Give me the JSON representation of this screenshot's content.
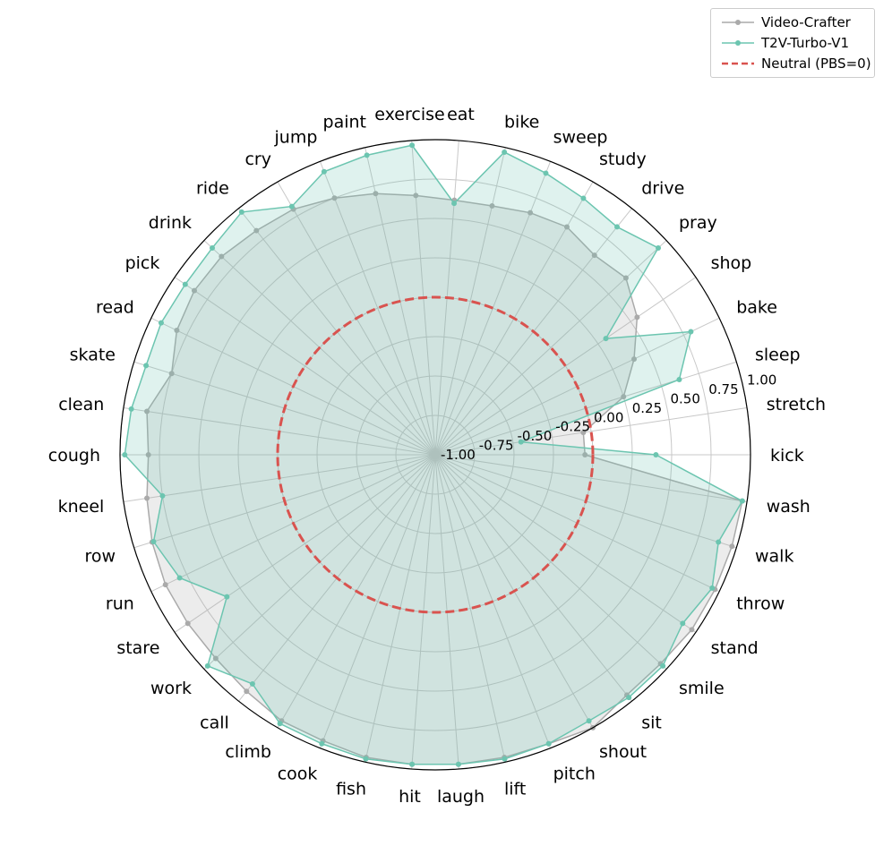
{
  "chart_data": {
    "type": "radar",
    "categories": [
      "kick",
      "stretch",
      "sleep",
      "bake",
      "shop",
      "pray",
      "drive",
      "study",
      "sweep",
      "bike",
      "eat",
      "exercise",
      "paint",
      "jump",
      "cry",
      "ride",
      "drink",
      "pick",
      "read",
      "skate",
      "clean",
      "cough",
      "kneel",
      "row",
      "run",
      "stare",
      "work",
      "call",
      "climb",
      "cook",
      "fish",
      "hit",
      "laugh",
      "lift",
      "pitch",
      "shout",
      "sit",
      "smile",
      "stand",
      "throw",
      "walk",
      "wash"
    ],
    "rlim": [
      -1.0,
      1.0
    ],
    "radial_ticks": [
      -1.0,
      -0.75,
      -0.5,
      -0.25,
      0.0,
      0.25,
      0.5,
      0.75,
      1.0
    ],
    "radial_tick_labels": [
      "-1.00",
      "-0.75",
      "-0.50",
      "-0.25",
      "0.00",
      "0.25",
      "0.50",
      "0.75",
      "1.00"
    ],
    "grid": true,
    "legend_position": "top-right",
    "series": [
      {
        "name": "Video-Crafter",
        "color": "#aaaaaa",
        "values": [
          -0.05,
          -0.05,
          0.25,
          0.4,
          0.55,
          0.65,
          0.62,
          0.67,
          0.65,
          0.62,
          0.62,
          0.65,
          0.7,
          0.75,
          0.8,
          0.82,
          0.85,
          0.85,
          0.82,
          0.75,
          0.85,
          0.82,
          0.85,
          0.88,
          0.9,
          0.9,
          0.9,
          0.92,
          0.95,
          0.95,
          0.97,
          0.97,
          0.97,
          0.97,
          0.97,
          1.0,
          0.95,
          0.95,
          0.97,
          0.97,
          0.97,
          0.97
        ]
      },
      {
        "name": "T2V-Turbo-V1",
        "color": "#6cc5b0",
        "values": [
          0.4,
          -0.45,
          0.62,
          0.8,
          0.31,
          0.93,
          0.85,
          0.88,
          0.92,
          0.97,
          0.6,
          0.97,
          0.95,
          0.93,
          0.82,
          0.97,
          0.93,
          0.92,
          0.93,
          0.92,
          0.95,
          0.97,
          0.75,
          0.87,
          0.8,
          0.6,
          0.97,
          0.86,
          0.97,
          0.97,
          0.98,
          0.97,
          0.97,
          0.98,
          0.97,
          0.95,
          0.97,
          0.97,
          0.9,
          0.95,
          0.88,
          0.97
        ]
      },
      {
        "name": "Neutral (PBS=0)",
        "color": "#d9534f",
        "constant": 0.0
      }
    ]
  }
}
